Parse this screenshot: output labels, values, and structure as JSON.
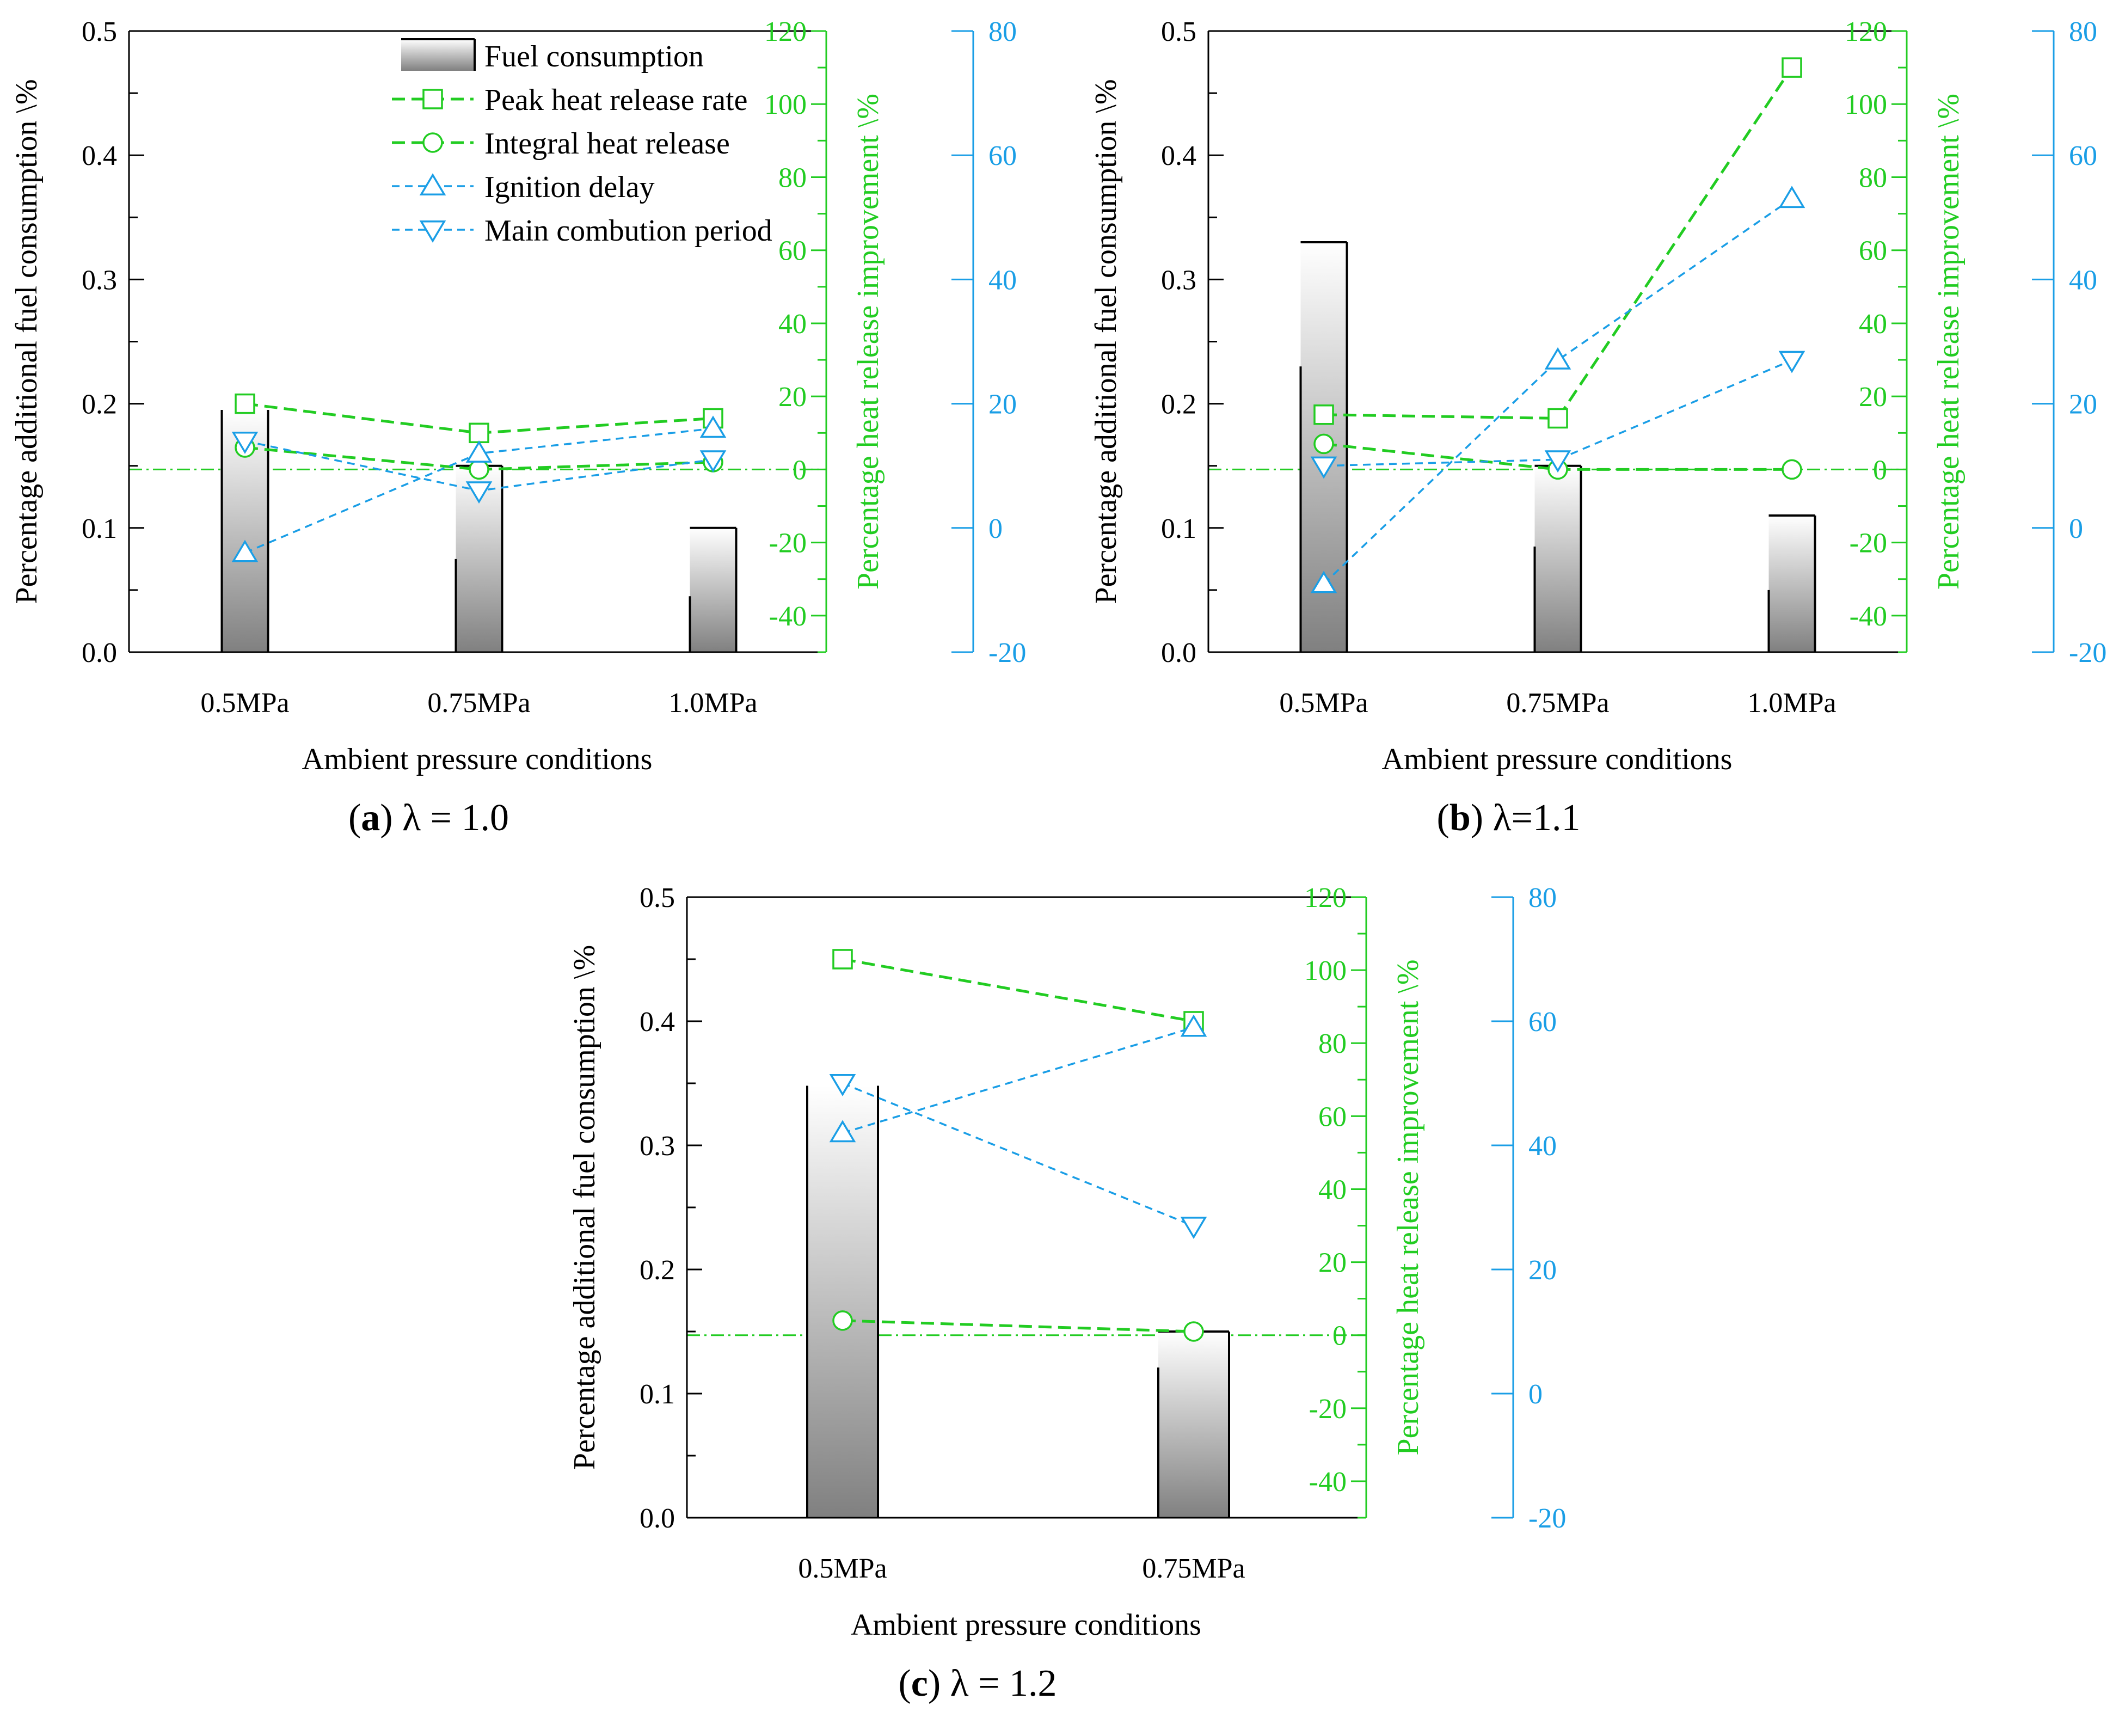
{
  "colors": {
    "axis": "#000000",
    "green": "#22cc22",
    "blue": "#1a9ee6",
    "bar_dark": "#808080",
    "bar_light": "#ffffff"
  },
  "legend": {
    "items": [
      {
        "label": "Fuel consumption",
        "kind": "bar"
      },
      {
        "label": "Peak heat release rate",
        "kind": "green-dashed-square"
      },
      {
        "label": "Integral heat release",
        "kind": "green-dashed-circle"
      },
      {
        "label": "Ignition delay",
        "kind": "blue-dashed-triangle-up"
      },
      {
        "label": "Main combution period",
        "kind": "blue-dashed-triangle-down"
      }
    ]
  },
  "chart_data": [
    {
      "type": "bar",
      "panel_label": "(a)",
      "panel_caption": "λ = 1.0",
      "xlabel": "Ambient pressure conditions",
      "ylabel": "Percentage additional fuel consumption \\%",
      "y2label": "Percentage heat release improvement \\%",
      "categories": [
        "0.5MPa",
        "0.75MPa",
        "1.0MPa"
      ],
      "ylim": [
        0,
        0.5
      ],
      "yticks": [
        "0.0",
        "0.1",
        "0.2",
        "0.3",
        "0.4",
        "0.5"
      ],
      "y2lim": [
        -50,
        120
      ],
      "y2ticks": [
        "-40",
        "-20",
        "0",
        "20",
        "40",
        "60",
        "80",
        "100",
        "120"
      ],
      "y3lim": [
        -20,
        80
      ],
      "y3ticks": [
        "-20",
        "0",
        "20",
        "40",
        "60",
        "80"
      ],
      "bars": {
        "name": "Fuel consumption",
        "values": [
          0.195,
          0.15,
          0.1
        ],
        "lower": [
          0.195,
          0.075,
          0.045
        ]
      },
      "series": [
        {
          "name": "Peak heat release rate",
          "axis": "green",
          "values": [
            18,
            10,
            14
          ]
        },
        {
          "name": "Integral heat release",
          "axis": "green",
          "values": [
            6,
            0,
            2
          ]
        },
        {
          "name": "Ignition delay",
          "axis": "blue",
          "values": [
            -4,
            12,
            16
          ]
        },
        {
          "name": "Main combution period",
          "axis": "blue",
          "values": [
            14,
            6,
            11
          ]
        }
      ]
    },
    {
      "type": "bar",
      "panel_label": "(b)",
      "panel_caption": "λ=1.1",
      "xlabel": "Ambient pressure conditions",
      "ylabel": "Percentage additional fuel consumption \\%",
      "y2label": "Percentage heat release improvement \\%",
      "categories": [
        "0.5MPa",
        "0.75MPa",
        "1.0MPa"
      ],
      "ylim": [
        0,
        0.5
      ],
      "yticks": [
        "0.0",
        "0.1",
        "0.2",
        "0.3",
        "0.4",
        "0.5"
      ],
      "y2lim": [
        -50,
        120
      ],
      "y2ticks": [
        "-40",
        "-20",
        "0",
        "20",
        "40",
        "60",
        "80",
        "100",
        "120"
      ],
      "y3lim": [
        -20,
        80
      ],
      "y3ticks": [
        "-20",
        "0",
        "20",
        "40",
        "60",
        "80"
      ],
      "bars": {
        "name": "Fuel consumption",
        "values": [
          0.33,
          0.15,
          0.11
        ],
        "lower": [
          0.23,
          0.085,
          0.05
        ]
      },
      "series": [
        {
          "name": "Peak heat release rate",
          "axis": "green",
          "values": [
            15,
            14,
            110
          ]
        },
        {
          "name": "Integral heat release",
          "axis": "green",
          "values": [
            7,
            0,
            0
          ]
        },
        {
          "name": "Ignition delay",
          "axis": "blue",
          "values": [
            -9,
            27,
            53
          ]
        },
        {
          "name": "Main combution period",
          "axis": "blue",
          "values": [
            10,
            11,
            27
          ]
        }
      ]
    },
    {
      "type": "bar",
      "panel_label": "(c)",
      "panel_caption": "λ = 1.2",
      "xlabel": "Ambient pressure conditions",
      "ylabel": "Percentage additional fuel consumption \\%",
      "y2label": "Percentage heat release improvement \\%",
      "categories": [
        "0.5MPa",
        "0.75MPa"
      ],
      "ylim": [
        0,
        0.5
      ],
      "yticks": [
        "0.0",
        "0.1",
        "0.2",
        "0.3",
        "0.4",
        "0.5"
      ],
      "y2lim": [
        -50,
        120
      ],
      "y2ticks": [
        "-40",
        "-20",
        "0",
        "20",
        "40",
        "60",
        "80",
        "100",
        "120"
      ],
      "y3lim": [
        -20,
        80
      ],
      "y3ticks": [
        "-20",
        "0",
        "20",
        "40",
        "60",
        "80"
      ],
      "bars": {
        "name": "Fuel consumption",
        "values": [
          0.348,
          0.15
        ],
        "lower": [
          0.348,
          0.121
        ]
      },
      "series": [
        {
          "name": "Peak heat release rate",
          "axis": "green",
          "values": [
            103,
            86
          ]
        },
        {
          "name": "Integral heat release",
          "axis": "green",
          "values": [
            4,
            1
          ]
        },
        {
          "name": "Ignition delay",
          "axis": "blue",
          "values": [
            42,
            59
          ]
        },
        {
          "name": "Main combution period",
          "axis": "blue",
          "values": [
            50,
            27
          ]
        }
      ]
    }
  ]
}
